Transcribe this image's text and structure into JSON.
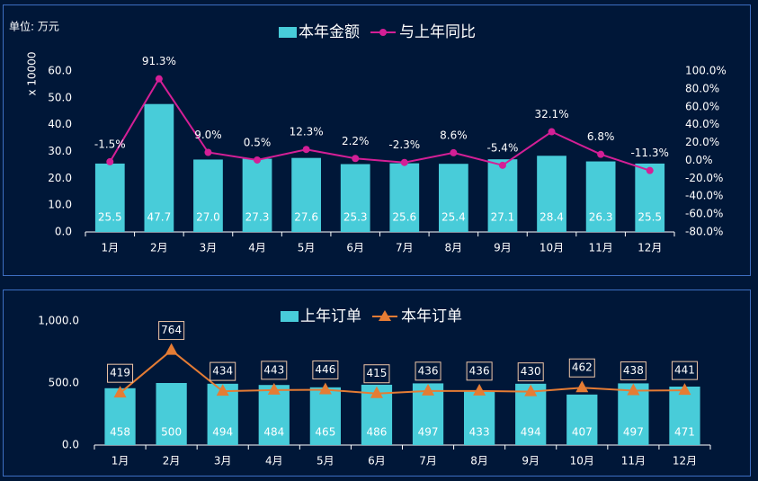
{
  "chart_data": [
    {
      "type": "bar",
      "unit_label": "单位:  万元",
      "y_label": "x 10000",
      "categories": [
        "1月",
        "2月",
        "3月",
        "4月",
        "5月",
        "6月",
        "7月",
        "8月",
        "9月",
        "10月",
        "11月",
        "12月"
      ],
      "series": [
        {
          "name": "本年金额",
          "type": "bar",
          "color": "#48ccd9",
          "values": [
            25.5,
            47.7,
            27.0,
            27.3,
            27.6,
            25.3,
            25.6,
            25.4,
            27.1,
            28.4,
            26.3,
            25.5
          ],
          "value_labels": [
            "25.5",
            "47.7",
            "27.0",
            "27.3",
            "27.6",
            "25.3",
            "25.6",
            "25.4",
            "27.1",
            "28.4",
            "26.3",
            "25.5"
          ]
        },
        {
          "name": "与上年同比",
          "type": "line",
          "axis": "y2",
          "color": "#d41f96",
          "values": [
            -1.5,
            91.3,
            9.0,
            0.5,
            12.3,
            2.2,
            -2.3,
            8.6,
            -5.4,
            32.1,
            6.8,
            -11.3
          ],
          "value_labels": [
            "-1.5%",
            "91.3%",
            "9.0%",
            "0.5%",
            "12.3%",
            "2.2%",
            "-2.3%",
            "8.6%",
            "-5.4%",
            "32.1%",
            "6.8%",
            "-11.3%"
          ]
        }
      ],
      "ylim": [
        0,
        60
      ],
      "yticks": [
        {
          "value": 0,
          "label": "0.0"
        },
        {
          "value": 10,
          "label": "10.0"
        },
        {
          "value": 20,
          "label": "20.0"
        },
        {
          "value": 30,
          "label": "30.0"
        },
        {
          "value": 40,
          "label": "40.0"
        },
        {
          "value": 50,
          "label": "50.0"
        },
        {
          "value": 60,
          "label": "60.0"
        }
      ],
      "y2lim": [
        -80,
        100
      ],
      "y2ticks": [
        {
          "value": -80,
          "label": "-80.0%"
        },
        {
          "value": -60,
          "label": "-60.0%"
        },
        {
          "value": -40,
          "label": "-40.0%"
        },
        {
          "value": -20,
          "label": "-20.0%"
        },
        {
          "value": 0,
          "label": "0.0%"
        },
        {
          "value": 20,
          "label": "20.0%"
        },
        {
          "value": 40,
          "label": "40.0%"
        },
        {
          "value": 60,
          "label": "60.0%"
        },
        {
          "value": 80,
          "label": "80.0%"
        },
        {
          "value": 100,
          "label": "100.0%"
        }
      ],
      "grid": false
    },
    {
      "type": "bar",
      "categories": [
        "1月",
        "2月",
        "3月",
        "4月",
        "5月",
        "6月",
        "7月",
        "8月",
        "9月",
        "10月",
        "11月",
        "12月"
      ],
      "series": [
        {
          "name": "上年订单",
          "type": "bar",
          "color": "#48ccd9",
          "values": [
            458,
            500,
            494,
            484,
            465,
            486,
            497,
            433,
            494,
            407,
            497,
            471
          ]
        },
        {
          "name": "本年订单",
          "type": "line",
          "color": "#e57c34",
          "values": [
            419,
            764,
            434,
            443,
            446,
            415,
            436,
            436,
            430,
            462,
            438,
            441
          ]
        }
      ],
      "ylim": [
        0,
        1000
      ],
      "yticks": [
        {
          "value": 0,
          "label": "0.0"
        },
        {
          "value": 500,
          "label": "500.0"
        },
        {
          "value": 1000,
          "label": "1,000.0"
        }
      ],
      "grid": false
    }
  ]
}
